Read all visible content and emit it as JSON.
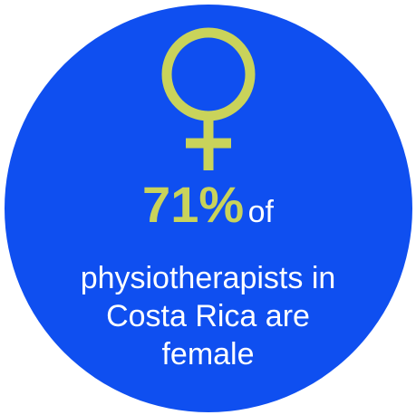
{
  "colors": {
    "circle_fill": "#0f4ff0",
    "accent": "#c9d35a",
    "text": "#ffffff"
  },
  "icon": "female-symbol",
  "stat": {
    "percent": "71%",
    "connector": "of"
  },
  "description": {
    "line1": "physiotherapists in",
    "line2": "Costa Rica are",
    "line3": "female"
  }
}
